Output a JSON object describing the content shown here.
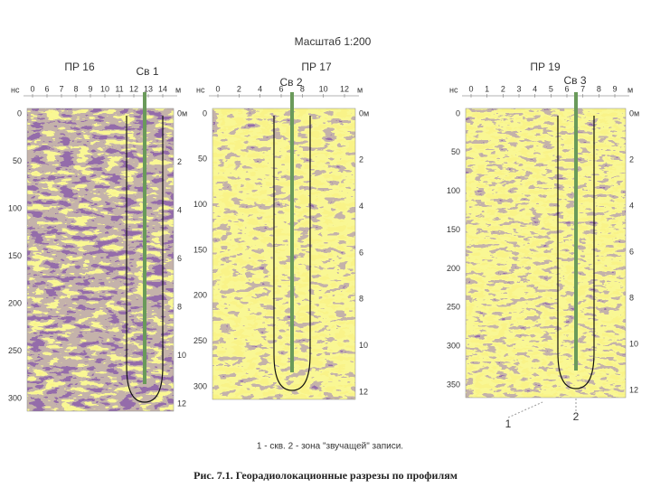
{
  "header": {
    "scale": "Масштаб 1:200"
  },
  "panels": [
    {
      "title": "ПР 16",
      "well": "Св 1",
      "depth_unit": "нс",
      "x_unit": "м",
      "x_ticks": [
        "0",
        "6",
        "7",
        "8",
        "9",
        "10",
        "11",
        "12",
        "13",
        "14"
      ],
      "depth_ticks": [
        "0",
        "50",
        "100",
        "150",
        "200",
        "250",
        "300"
      ],
      "right_ticks": [
        "0м",
        "2",
        "4",
        "6",
        "8",
        "10",
        "12"
      ]
    },
    {
      "title": "ПР 17",
      "well": "Св 2",
      "depth_unit": "нс",
      "x_unit": "м",
      "x_ticks": [
        "0",
        "2",
        "4",
        "6",
        "8",
        "10",
        "12"
      ],
      "depth_ticks": [
        "0",
        "50",
        "100",
        "150",
        "200",
        "250",
        "300"
      ],
      "right_ticks": [
        "0м",
        "2",
        "4",
        "6",
        "8",
        "10",
        "12"
      ]
    },
    {
      "title": "ПР 19",
      "well": "Св 3",
      "depth_unit": "нс",
      "x_unit": "м",
      "x_ticks": [
        "0",
        "1",
        "2",
        "3",
        "4",
        "5",
        "6",
        "7",
        "8",
        "9"
      ],
      "depth_ticks": [
        "0",
        "50",
        "100",
        "150",
        "200",
        "250",
        "300",
        "350"
      ],
      "right_ticks": [
        "0м",
        "2",
        "4",
        "6",
        "8",
        "10",
        "12"
      ]
    }
  ],
  "markers": [
    "1",
    "2"
  ],
  "legend": "1 - скв. 2 - зона \"звучащей\" записи.",
  "caption": "Рис. 7.1. Георадиолокационные разрезы по профилям"
}
